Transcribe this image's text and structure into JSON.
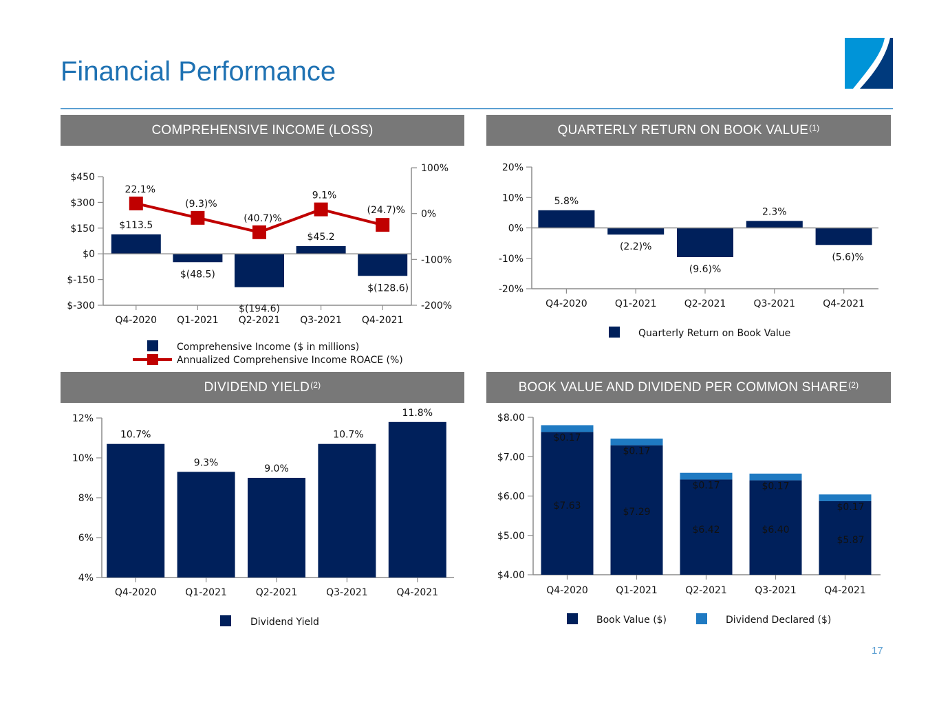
{
  "page": {
    "title": "Financial Performance",
    "page_number": "17",
    "colors": {
      "title": "#1f72b3",
      "navy": "#00205b",
      "light_blue": "#1f7ac2",
      "red": "#c00000",
      "header_gray": "#787878",
      "axis": "#8c8c8c"
    }
  },
  "panels": {
    "comprehensive_income": {
      "title": "COMPREHENSIVE INCOME (LOSS)",
      "sup": ""
    },
    "return_on_book": {
      "title": "QUARTERLY RETURN ON BOOK VALUE",
      "sup": "(1)"
    },
    "dividend_yield": {
      "title": "DIVIDEND YIELD",
      "sup": "(2)"
    },
    "book_value": {
      "title": "BOOK VALUE AND DIVIDEND PER COMMON SHARE",
      "sup": "(2)"
    }
  },
  "chart_data": [
    {
      "id": "comprehensive_income",
      "type": "bar",
      "title": "COMPREHENSIVE INCOME (LOSS)",
      "categories": [
        "Q4-2020",
        "Q1-2021",
        "Q2-2021",
        "Q3-2021",
        "Q4-2021"
      ],
      "series": [
        {
          "name": "Comprehensive Income ($ in millions)",
          "type": "bar",
          "axis": "left",
          "values": [
            113.5,
            -48.5,
            -194.6,
            45.2,
            -128.6
          ],
          "labels": [
            "$113.5",
            "$(48.5)",
            "$(194.6)",
            "$45.2",
            "$(128.6)"
          ]
        },
        {
          "name": "Annualized Comprehensive Income ROACE (%)",
          "type": "line",
          "axis": "right",
          "values": [
            22.1,
            -9.3,
            -40.7,
            9.1,
            -24.7
          ],
          "labels": [
            "22.1%",
            "(9.3)%",
            "(40.7)%",
            "9.1%",
            "(24.7)%"
          ]
        }
      ],
      "y_left": {
        "range": [
          -300,
          450
        ],
        "ticks": [
          -300,
          -150,
          0,
          150,
          300,
          450
        ],
        "tick_labels": [
          "$-300",
          "$-150",
          "$0",
          "$150",
          "$300",
          "$450"
        ]
      },
      "y_right": {
        "range": [
          -200,
          100
        ],
        "ticks": [
          -200,
          -100,
          0,
          100
        ],
        "tick_labels": [
          "-200%",
          "-100%",
          "0%",
          "100%"
        ]
      },
      "legend": {
        "position": "bottom",
        "entries": [
          "Comprehensive Income ($ in millions)",
          "Annualized Comprehensive Income ROACE (%)"
        ]
      },
      "grid": false
    },
    {
      "id": "return_on_book",
      "type": "bar",
      "title": "QUARTERLY RETURN ON BOOK VALUE",
      "categories": [
        "Q4-2020",
        "Q1-2021",
        "Q2-2021",
        "Q3-2021",
        "Q4-2021"
      ],
      "series": [
        {
          "name": "Quarterly Return on Book Value",
          "values": [
            5.8,
            -2.2,
            -9.6,
            2.3,
            -5.6
          ],
          "labels": [
            "5.8%",
            "(2.2)%",
            "(9.6)%",
            "2.3%",
            "(5.6)%"
          ]
        }
      ],
      "y": {
        "range": [
          -20,
          20
        ],
        "ticks": [
          -20,
          -10,
          0,
          10,
          20
        ],
        "tick_labels": [
          "-20%",
          "-10%",
          "0%",
          "10%",
          "20%"
        ]
      },
      "legend": {
        "position": "bottom",
        "entries": [
          "Quarterly Return on Book Value"
        ]
      },
      "grid": false
    },
    {
      "id": "dividend_yield",
      "type": "bar",
      "title": "DIVIDEND YIELD",
      "categories": [
        "Q4-2020",
        "Q1-2021",
        "Q2-2021",
        "Q3-2021",
        "Q4-2021"
      ],
      "series": [
        {
          "name": "Dividend Yield",
          "values": [
            10.7,
            9.3,
            9.0,
            10.7,
            11.8
          ],
          "labels": [
            "10.7%",
            "9.3%",
            "9.0%",
            "10.7%",
            "11.8%"
          ]
        }
      ],
      "y": {
        "range": [
          4,
          12
        ],
        "ticks": [
          4,
          6,
          8,
          10,
          12
        ],
        "tick_labels": [
          "4%",
          "6%",
          "8%",
          "10%",
          "12%"
        ]
      },
      "legend": {
        "position": "bottom",
        "entries": [
          "Dividend Yield"
        ]
      },
      "grid": false
    },
    {
      "id": "book_value",
      "type": "bar",
      "stacked": true,
      "title": "BOOK VALUE AND DIVIDEND PER COMMON SHARE",
      "categories": [
        "Q4-2020",
        "Q1-2021",
        "Q2-2021",
        "Q3-2021",
        "Q4-2021"
      ],
      "series": [
        {
          "name": "Book Value ($)",
          "values": [
            7.63,
            7.29,
            6.42,
            6.4,
            5.87
          ],
          "labels": [
            "$7.63",
            "$7.29",
            "$6.42",
            "$6.40",
            "$5.87"
          ]
        },
        {
          "name": "Dividend Declared ($)",
          "values": [
            0.17,
            0.17,
            0.17,
            0.17,
            0.17
          ],
          "labels": [
            "$0.17",
            "$0.17",
            "$0.17",
            "$0.17",
            "$0.17"
          ]
        }
      ],
      "y": {
        "range": [
          4,
          8
        ],
        "ticks": [
          4,
          5,
          6,
          7,
          8
        ],
        "tick_labels": [
          "$4.00",
          "$5.00",
          "$6.00",
          "$7.00",
          "$8.00"
        ]
      },
      "legend": {
        "position": "bottom",
        "entries": [
          "Book Value ($)",
          "Dividend Declared ($)"
        ]
      },
      "grid": false
    }
  ]
}
